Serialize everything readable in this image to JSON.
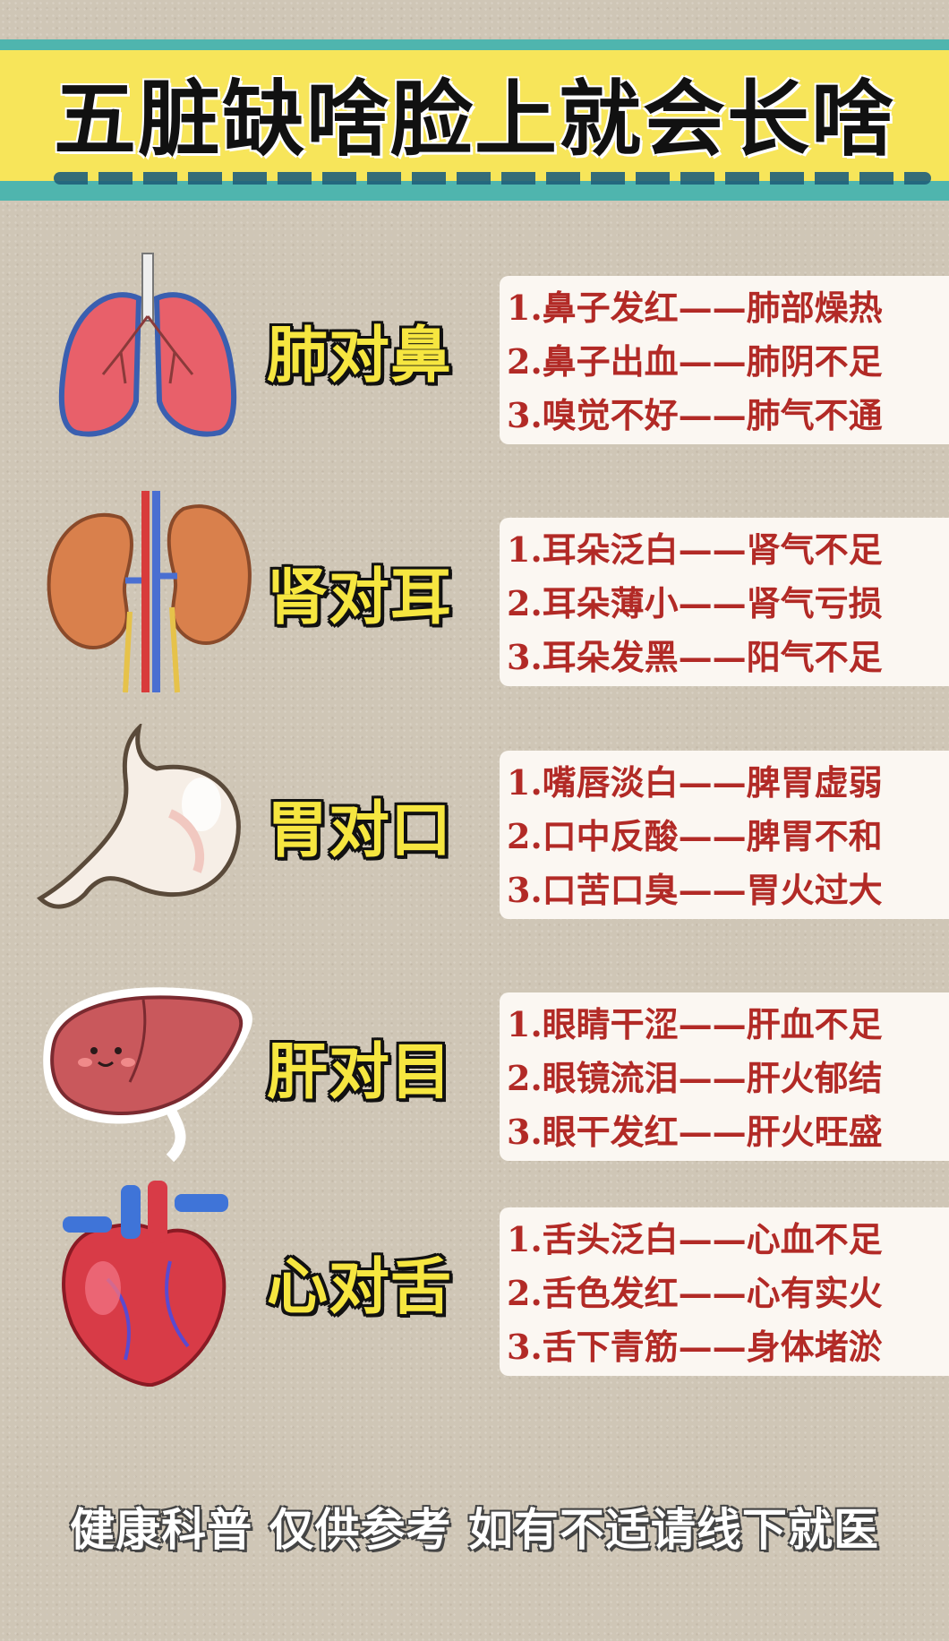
{
  "title": "五脏缺啥脸上就会长啥",
  "colors": {
    "banner_teal": "#4fb5ae",
    "banner_yellow": "#f7e55a",
    "label_yellow": "#f6e640",
    "list_red": "#b22a26",
    "card_bg": "#fbf7f2"
  },
  "rows": [
    {
      "organ_icon": "lungs-icon",
      "label": "肺对鼻",
      "items": [
        "1.鼻子发红——肺部燥热",
        "2.鼻子出血——肺阴不足",
        "3.嗅觉不好——肺气不通"
      ]
    },
    {
      "organ_icon": "kidneys-icon",
      "label": "肾对耳",
      "items": [
        "1.耳朵泛白——肾气不足",
        "2.耳朵薄小——肾气亏损",
        "3.耳朵发黑——阳气不足"
      ]
    },
    {
      "organ_icon": "stomach-icon",
      "label": "胃对口",
      "items": [
        "1.嘴唇淡白——脾胃虚弱",
        "2.口中反酸——脾胃不和",
        "3.口苦口臭——胃火过大"
      ]
    },
    {
      "organ_icon": "liver-icon",
      "label": "肝对目",
      "items": [
        "1.眼睛干涩——肝血不足",
        "2.眼镜流泪——肝火郁结",
        "3.眼干发红——肝火旺盛"
      ]
    },
    {
      "organ_icon": "heart-icon",
      "label": "心对舌",
      "items": [
        "1.舌头泛白——心血不足",
        "2.舌色发红——心有实火",
        "3.舌下青筋——身体堵淤"
      ]
    }
  ],
  "footer": "健康科普 仅供参考 如有不适请线下就医"
}
